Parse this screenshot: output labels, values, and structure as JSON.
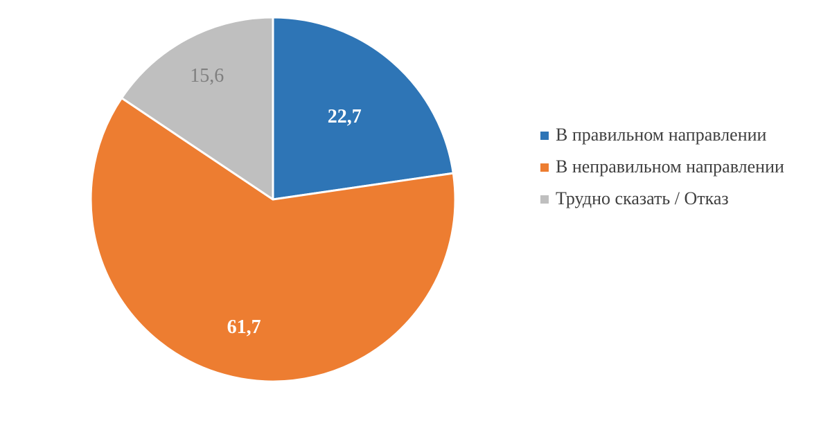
{
  "chart_data": {
    "type": "pie",
    "categories": [
      "В правильном направлении",
      "В неправильном направлении",
      "Трудно сказать / Отказ"
    ],
    "values": [
      22.7,
      61.7,
      15.6
    ],
    "value_labels": [
      "22,7",
      "61,7",
      "15,6"
    ],
    "colors": [
      "#2E75B6",
      "#ED7D31",
      "#BFBFBF"
    ],
    "label_colors": [
      "#FFFFFF",
      "#FFFFFF",
      "#7F7F7F"
    ],
    "legend_position": "right",
    "title": ""
  }
}
